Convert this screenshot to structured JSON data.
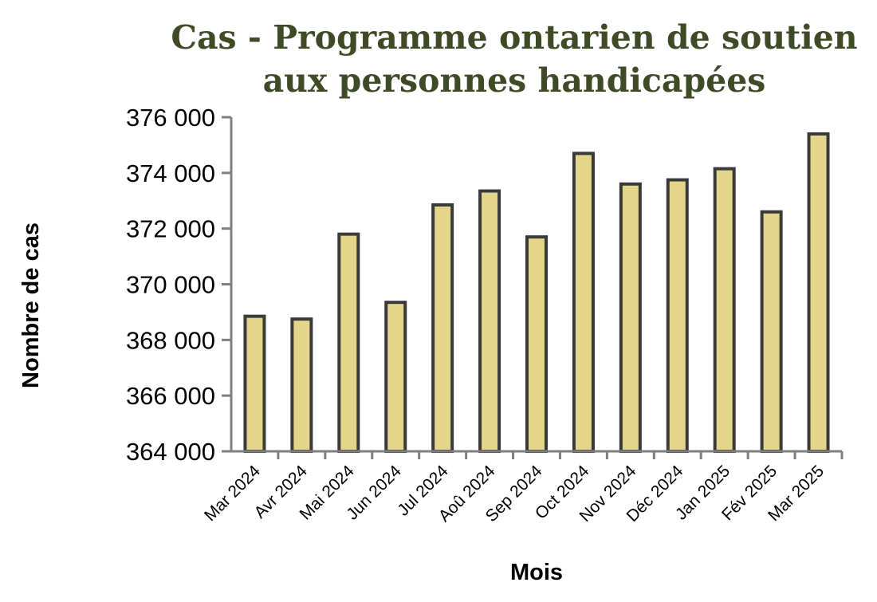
{
  "chart_data": {
    "type": "bar",
    "title_lines": [
      "Cas - Programme ontarien de soutien",
      "aux personnes handicapées"
    ],
    "xlabel": "Mois",
    "ylabel": "Nombre de cas",
    "categories": [
      "Mar 2024",
      "Avr 2024",
      "Mai 2024",
      "Jun 2024",
      "Jul 2024",
      "Aoû 2024",
      "Sep 2024",
      "Oct 2024",
      "Nov 2024",
      "Déc 2024",
      "Jan 2025",
      "Fév 2025",
      "Mar 2025"
    ],
    "values": [
      368850,
      368750,
      371800,
      369350,
      372850,
      373350,
      371700,
      374700,
      373600,
      373750,
      374150,
      372600,
      375400
    ],
    "ylim": [
      364000,
      376000
    ],
    "yticks": [
      364000,
      366000,
      368000,
      370000,
      372000,
      374000,
      376000
    ],
    "ytick_labels": [
      "364 000",
      "366 000",
      "368 000",
      "370 000",
      "372 000",
      "374 000",
      "376 000"
    ],
    "grid": false,
    "legend": "none",
    "colors": {
      "bar_fill": "#e3d68a",
      "bar_stroke": "#3a3a3a",
      "axis": "#7f7f7f",
      "title": "#3f4a26"
    }
  }
}
